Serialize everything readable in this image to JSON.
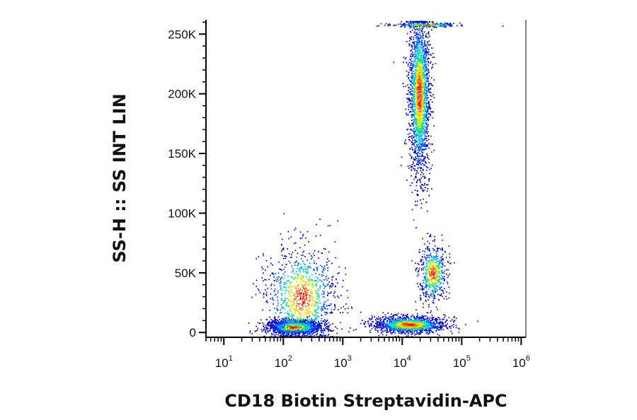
{
  "chart_data": {
    "type": "scatter",
    "xlabel": "CD18 Biotin Streptavidin-APC",
    "ylabel": "SS-H :: SS INT LIN",
    "x_scale": "log",
    "xlim": [
      5,
      1200000
    ],
    "ylim": [
      -4000,
      262000
    ],
    "x_ticks": [
      {
        "value": 10,
        "base": "10",
        "exp": "1"
      },
      {
        "value": 100,
        "base": "10",
        "exp": "2"
      },
      {
        "value": 1000,
        "base": "10",
        "exp": "3"
      },
      {
        "value": 10000,
        "base": "10",
        "exp": "4"
      },
      {
        "value": 100000,
        "base": "10",
        "exp": "5"
      },
      {
        "value": 1000000,
        "base": "10",
        "exp": "6"
      }
    ],
    "y_ticks": [
      {
        "value": 0,
        "label": "0"
      },
      {
        "value": 50000,
        "label": "50K"
      },
      {
        "value": 100000,
        "label": "100K"
      },
      {
        "value": 150000,
        "label": "150K"
      },
      {
        "value": 200000,
        "label": "200K"
      },
      {
        "value": 250000,
        "label": "250K"
      }
    ],
    "colormap": [
      "#0000cc",
      "#0055ff",
      "#00c8ff",
      "#00e07a",
      "#c8f000",
      "#ffd000",
      "#ff5a00",
      "#ee0000"
    ],
    "populations": [
      {
        "x_center": 150,
        "y_center": 5000,
        "x_log_spread": 0.22,
        "y_spread": 3000,
        "count": 1500
      },
      {
        "x_center": 200,
        "y_center": 30000,
        "x_log_spread": 0.3,
        "y_spread": 22000,
        "count": 1100
      },
      {
        "x_center": 13000,
        "y_center": 7000,
        "x_log_spread": 0.3,
        "y_spread": 3500,
        "count": 1400
      },
      {
        "x_center": 19000,
        "y_center": 200000,
        "x_log_spread": 0.09,
        "y_spread": 35000,
        "count": 2200
      },
      {
        "x_center": 32000,
        "y_center": 50000,
        "x_log_spread": 0.12,
        "y_spread": 12000,
        "count": 550
      },
      {
        "x_center": 25000,
        "y_center": 258000,
        "x_log_spread": 0.3,
        "y_spread": 800,
        "count": 250
      }
    ]
  }
}
